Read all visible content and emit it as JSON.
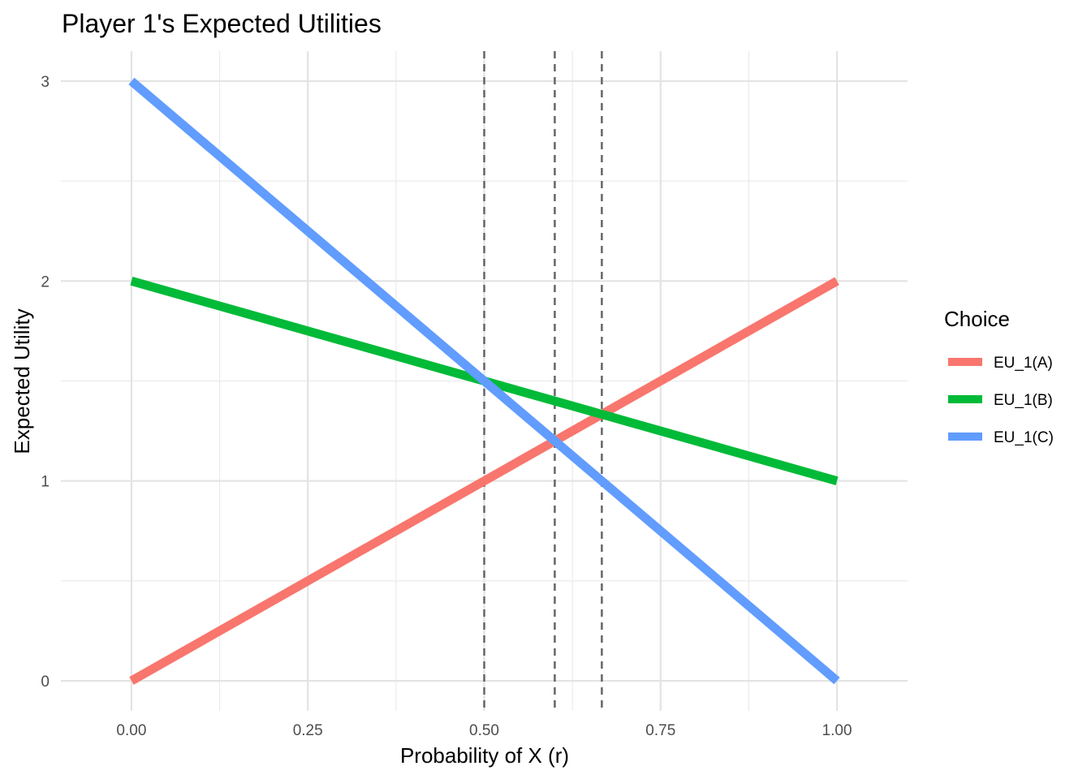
{
  "chart_data": {
    "type": "line",
    "title": "Player 1's Expected Utilities",
    "xlabel": "Probability of X (r)",
    "ylabel": "Expected Utility",
    "xlim": [
      -0.1,
      1.1
    ],
    "ylim": [
      -0.15,
      3.15
    ],
    "x_ticks": [
      {
        "value": 0,
        "label": "0.00"
      },
      {
        "value": 0.25,
        "label": "0.25"
      },
      {
        "value": 0.5,
        "label": "0.50"
      },
      {
        "value": 0.75,
        "label": "0.75"
      },
      {
        "value": 1,
        "label": "1.00"
      }
    ],
    "x_minor_ticks": [
      0.125,
      0.375,
      0.625,
      0.875
    ],
    "y_ticks": [
      {
        "value": 0,
        "label": "0"
      },
      {
        "value": 1,
        "label": "1"
      },
      {
        "value": 2,
        "label": "2"
      },
      {
        "value": 3,
        "label": "3"
      }
    ],
    "y_minor_ticks": [
      0.5,
      1.5,
      2.5
    ],
    "grid": true,
    "legend": {
      "title": "Choice",
      "position": "right"
    },
    "series": [
      {
        "name": "EU_1(A)",
        "color": "#F8766D",
        "x": [
          0,
          1
        ],
        "y": [
          0,
          2
        ]
      },
      {
        "name": "EU_1(B)",
        "color": "#00BA38",
        "x": [
          0,
          1
        ],
        "y": [
          2,
          1
        ]
      },
      {
        "name": "EU_1(C)",
        "color": "#619CFF",
        "x": [
          0,
          1
        ],
        "y": [
          3,
          0
        ]
      }
    ],
    "vlines": [
      {
        "x": 0.5,
        "style": "dashed",
        "color": "#666666"
      },
      {
        "x": 0.6,
        "style": "dashed",
        "color": "#666666"
      },
      {
        "x": 0.6667,
        "style": "dashed",
        "color": "#666666"
      }
    ]
  }
}
